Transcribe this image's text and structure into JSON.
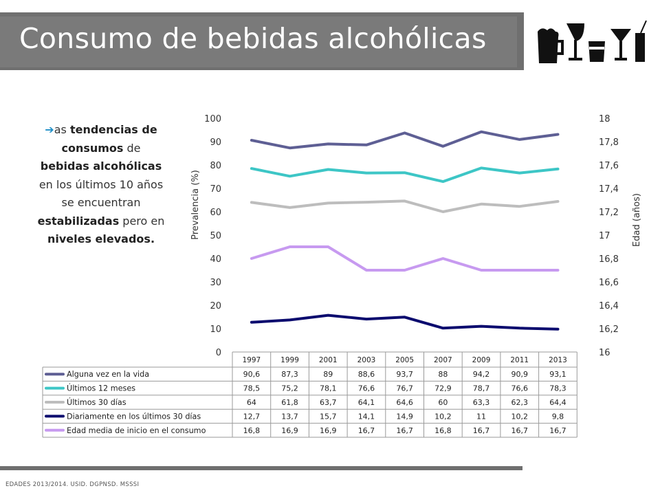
{
  "header": {
    "title": "Consumo de bebidas alcohólicas"
  },
  "sidebar": {
    "p1": "as ",
    "b1": "tendencias de consumos",
    "p2": " de ",
    "b2": "bebidas alcohólicas",
    "p3": " en los últimos 10 años se encuentran ",
    "b3": "estabilizadas",
    "p4": " pero en ",
    "b4": "niveles elevados."
  },
  "footer": {
    "source": "EDADES 2013/2014. USID. DGPNSD. MSSSI"
  },
  "chart_data": {
    "type": "line",
    "xlabel": "",
    "ylabel": "Prevalencia (%)",
    "y2label": "Edad (años)",
    "ylim": [
      0,
      100
    ],
    "yticks": [
      "0",
      "10",
      "20",
      "30",
      "40",
      "50",
      "60",
      "70",
      "80",
      "90",
      "100"
    ],
    "y2lim": [
      16,
      18
    ],
    "y2ticks": [
      "16",
      "16,2",
      "16,4",
      "16,6",
      "16,8",
      "17",
      "17,2",
      "17,4",
      "17,6",
      "17,8",
      "18"
    ],
    "categories": [
      "1997",
      "1999",
      "2001",
      "2003",
      "2005",
      "2007",
      "2009",
      "2011",
      "2013"
    ],
    "legend_position": "bottom-table",
    "series": [
      {
        "name": "Alguna vez en la vida",
        "axis": "left",
        "color": "#5e5f94",
        "values": [
          90.6,
          87.3,
          89,
          88.6,
          93.7,
          88,
          94.2,
          90.9,
          93.1
        ],
        "labels": [
          "90,6",
          "87,3",
          "89",
          "88,6",
          "93,7",
          "88",
          "94,2",
          "90,9",
          "93,1"
        ]
      },
      {
        "name": "Últimos 12 meses",
        "axis": "left",
        "color": "#3dc6c6",
        "values": [
          78.5,
          75.2,
          78.1,
          76.6,
          76.7,
          72.9,
          78.7,
          76.6,
          78.3
        ],
        "labels": [
          "78,5",
          "75,2",
          "78,1",
          "76,6",
          "76,7",
          "72,9",
          "78,7",
          "76,6",
          "78,3"
        ]
      },
      {
        "name": "Últimos 30 días",
        "axis": "left",
        "color": "#bdbdbd",
        "values": [
          64,
          61.8,
          63.7,
          64.1,
          64.6,
          60,
          63.3,
          62.3,
          64.4
        ],
        "labels": [
          "64",
          "61,8",
          "63,7",
          "64,1",
          "64,6",
          "60",
          "63,3",
          "62,3",
          "64,4"
        ]
      },
      {
        "name": "Diariamente en los últimos 30 días",
        "axis": "left",
        "color": "#0a0a6e",
        "values": [
          12.7,
          13.7,
          15.7,
          14.1,
          14.9,
          10.2,
          11,
          10.2,
          9.8
        ],
        "labels": [
          "12,7",
          "13,7",
          "15,7",
          "14,1",
          "14,9",
          "10,2",
          "11",
          "10,2",
          "9,8"
        ]
      },
      {
        "name": "Edad media de inicio en el consumo",
        "axis": "right",
        "color": "#c79af0",
        "values": [
          16.8,
          16.9,
          16.9,
          16.7,
          16.7,
          16.8,
          16.7,
          16.7,
          16.7
        ],
        "labels": [
          "16,8",
          "16,9",
          "16,9",
          "16,7",
          "16,7",
          "16,8",
          "16,7",
          "16,7",
          "16,7"
        ]
      }
    ]
  }
}
